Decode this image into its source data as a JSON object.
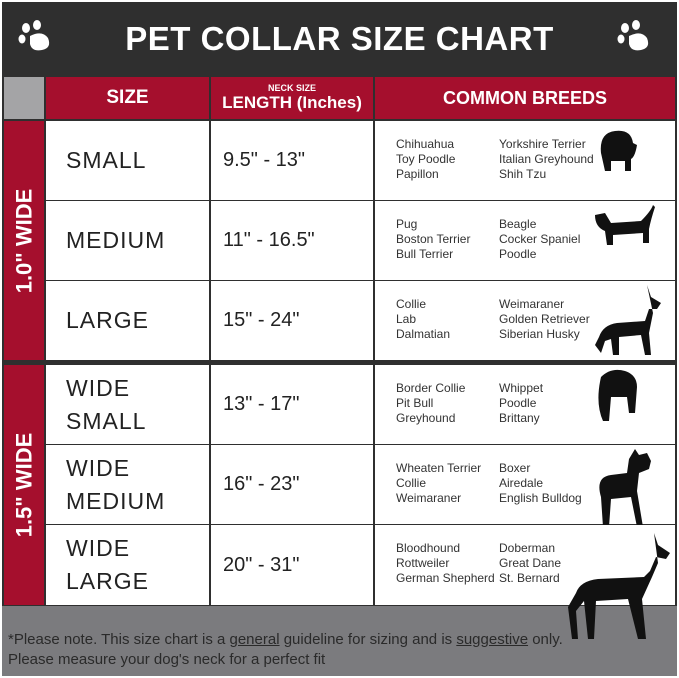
{
  "title": "PET COLLAR SIZE CHART",
  "header": {
    "size": "SIZE",
    "neck_small": "NECK SIZE",
    "length": "LENGTH (Inches)",
    "breeds": "COMMON BREEDS"
  },
  "groups": [
    {
      "label": "1.0\" WIDE"
    },
    {
      "label": "1.5\" WIDE"
    }
  ],
  "rows": [
    {
      "size": [
        "SMALL"
      ],
      "length": "9.5\" - 13\"",
      "breeds_left": [
        "Chihuahua",
        "Toy Poodle",
        "Papillon"
      ],
      "breeds_right": [
        "Yorkshire Terrier",
        "Italian Greyhound",
        "Shih Tzu"
      ]
    },
    {
      "size": [
        "MEDIUM"
      ],
      "length": "11\" - 16.5\"",
      "breeds_left": [
        "Pug",
        "Boston Terrier",
        "Bull Terrier"
      ],
      "breeds_right": [
        "Beagle",
        "Cocker Spaniel",
        "Poodle"
      ]
    },
    {
      "size": [
        "LARGE"
      ],
      "length": "15\" - 24\"",
      "breeds_left": [
        "Collie",
        "Lab",
        "Dalmatian"
      ],
      "breeds_right": [
        "Weimaraner",
        "Golden Retriever",
        "Siberian Husky"
      ]
    },
    {
      "size": [
        "WIDE",
        "SMALL"
      ],
      "length": "13\" - 17\"",
      "breeds_left": [
        "Border Collie",
        "Pit Bull",
        "Greyhound"
      ],
      "breeds_right": [
        "Whippet",
        "Poodle",
        "Brittany"
      ]
    },
    {
      "size": [
        "WIDE",
        "MEDIUM"
      ],
      "length": "16\" - 23\"",
      "breeds_left": [
        "Wheaten Terrier",
        "Collie",
        "Weimaraner"
      ],
      "breeds_right": [
        "Boxer",
        "Airedale",
        "English Bulldog"
      ]
    },
    {
      "size": [
        "WIDE",
        "LARGE"
      ],
      "length": "20\" - 31\"",
      "breeds_left": [
        "Bloodhound",
        "Rottweiler",
        "German Shepherd"
      ],
      "breeds_right": [
        "Doberman",
        "Great Dane",
        "St. Bernard"
      ]
    }
  ],
  "footer": {
    "part1": "*Please note. This size chart is a ",
    "general": "general",
    "part2": " guideline for sizing and is ",
    "suggestive": "suggestive",
    "part3": " only.",
    "line2": "Please measure your dog's neck for a perfect fit"
  },
  "colors": {
    "header_red": "#a50f2d",
    "dark": "#2f2f2f",
    "footer_gray": "#7b7b7e"
  }
}
